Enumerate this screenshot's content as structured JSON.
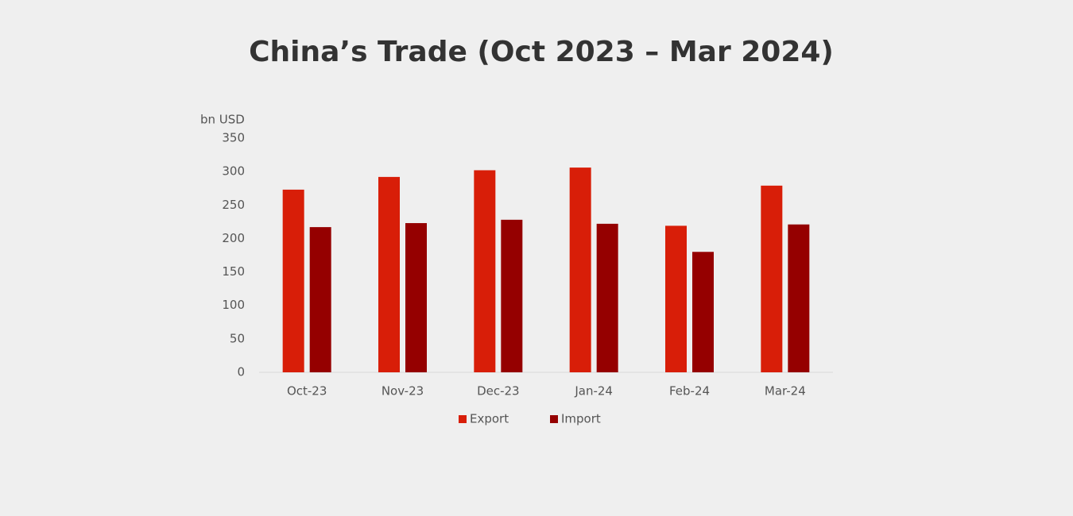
{
  "chart_data": {
    "type": "bar",
    "title": "China’s Trade (Oct 2023 – Mar 2024)",
    "y_label": "bn USD",
    "categories": [
      "Oct-23",
      "Nov-23",
      "Dec-23",
      "Jan-24",
      "Feb-24",
      "Mar-24"
    ],
    "series": [
      {
        "name": "Export",
        "color": "#d81e08",
        "values": [
          273,
          292,
          302,
          306,
          219,
          279
        ]
      },
      {
        "name": "Import",
        "color": "#950000",
        "values": [
          217,
          223,
          228,
          222,
          180,
          221
        ]
      }
    ],
    "ylim": [
      0,
      350
    ],
    "yticks": [
      0,
      50,
      100,
      150,
      200,
      250,
      300,
      350
    ],
    "grid": false,
    "legend": "bottom"
  }
}
